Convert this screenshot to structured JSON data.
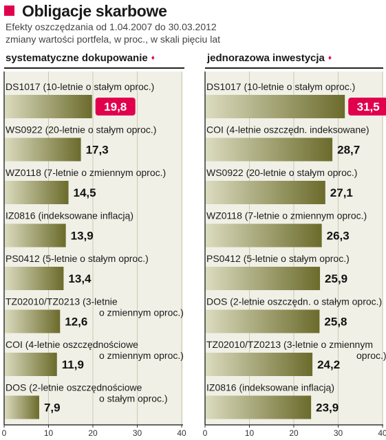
{
  "header": {
    "title": "Obligacje skarbowe",
    "subtitle_line1": "Efekty oszczędzania od 1.04.2007 do 30.03.2012",
    "subtitle_line2": "zmiany wartości portfela, w proc., w skali pięciu lat"
  },
  "colors": {
    "accent": "#e0004d",
    "bar_dark": "#6b6b2c",
    "bar_light": "#dcdcc0",
    "panel_bg": "#f1f0e6"
  },
  "chart_data": [
    {
      "type": "bar",
      "orientation": "horizontal",
      "title": "systematyczne dokupowanie",
      "xlim": [
        0,
        40
      ],
      "xticks": [
        0,
        10,
        20,
        30,
        40
      ],
      "categories": [
        [
          "DS1017 (10-letnie o stałym oproc.)"
        ],
        [
          "WS0922 (20-letnie o stałym oproc.)"
        ],
        [
          "WZ0118 (7-letnie o zmiennym oproc.)"
        ],
        [
          "IZ0816  (indeksowane inflacją)"
        ],
        [
          "PS0412 (5-letnie o stałym oproc.)"
        ],
        [
          "TZ02010/TZ0213 (3-letnie",
          "o zmiennym oproc.)"
        ],
        [
          "COI (4-letnie oszczędnościowe",
          "o zmiennym oproc.)"
        ],
        [
          "DOS (2-letnie oszczędnościowe",
          "o stałym oproc.)"
        ]
      ],
      "values": [
        19.8,
        17.3,
        14.5,
        13.9,
        13.4,
        12.6,
        11.9,
        7.9
      ],
      "value_labels": [
        "19,8",
        "17,3",
        "14,5",
        "13,9",
        "13,4",
        "12,6",
        "11,9",
        "7,9"
      ],
      "highlight_index": 0
    },
    {
      "type": "bar",
      "orientation": "horizontal",
      "title": "jednorazowa inwestycja",
      "xlim": [
        0,
        40
      ],
      "xticks": [
        0,
        10,
        20,
        30,
        40
      ],
      "categories": [
        [
          "DS1017 (10-letnie o stałym oproc.)"
        ],
        [
          "COI (4-letnie oszczędn. indeksowane)"
        ],
        [
          "WS0922 (20-letnie o stałym oproc.)"
        ],
        [
          "WZ0118 (7-letnie o zmiennym oproc.)"
        ],
        [
          "PS0412 (5-letnie o stałym oproc.)"
        ],
        [
          "DOS (2-letnie oszczędn. o stałym oproc.)"
        ],
        [
          "TZ02010/TZ0213 (3-letnie o zmiennym",
          "oproc.)"
        ],
        [
          "IZ0816  (indeksowane inflacją)"
        ]
      ],
      "values": [
        31.5,
        28.7,
        27.1,
        26.3,
        25.9,
        25.8,
        24.2,
        23.9
      ],
      "value_labels": [
        "31,5",
        "28,7",
        "27,1",
        "26,3",
        "25,9",
        "25,8",
        "24,2",
        "23,9"
      ],
      "highlight_index": 0
    }
  ]
}
